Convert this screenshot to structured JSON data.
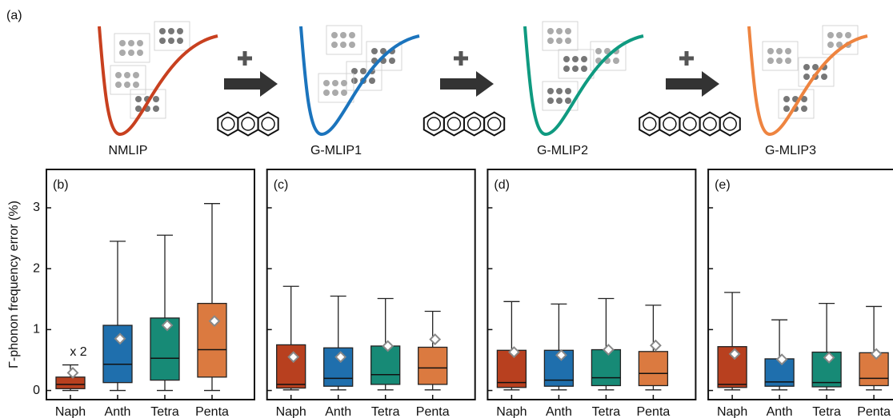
{
  "schematic": {
    "label": "(a)",
    "models": [
      "NMLIP",
      "G-MLIP1",
      "G-MLIP2",
      "G-MLIP3"
    ],
    "colors": [
      "#c8401f",
      "#1b74bd",
      "#0f9a80",
      "#ee8440"
    ]
  },
  "chart_data": [
    {
      "type": "box",
      "panel_label": "(b)",
      "ylabel": "Γ-phonon frequency error (%)",
      "annotation": "x 2",
      "categories": [
        "Naph",
        "Anth",
        "Tetra",
        "Penta"
      ],
      "colors": [
        "#b8401f",
        "#1f6fad",
        "#178a76",
        "#db7a40"
      ],
      "whisker_low": [
        0,
        0,
        0,
        0
      ],
      "q1": [
        0.03,
        0.13,
        0.17,
        0.22
      ],
      "median": [
        0.1,
        0.43,
        0.53,
        0.67
      ],
      "q3": [
        0.22,
        1.07,
        1.19,
        1.43
      ],
      "whisker_high": [
        0.42,
        2.45,
        2.55,
        3.07
      ],
      "mean": [
        0.29,
        0.85,
        1.07,
        1.14
      ],
      "ylim": [
        -0.15,
        3.63
      ],
      "yticks": [
        0,
        1,
        2,
        3
      ],
      "show_ytick_labels": true
    },
    {
      "type": "box",
      "panel_label": "(c)",
      "categories": [
        "Naph",
        "Anth",
        "Tetra",
        "Penta"
      ],
      "colors": [
        "#b8401f",
        "#1f6fad",
        "#178a76",
        "#db7a40"
      ],
      "whisker_low": [
        0.01,
        0.01,
        0.01,
        0.01
      ],
      "q1": [
        0.04,
        0.07,
        0.1,
        0.1
      ],
      "median": [
        0.1,
        0.2,
        0.26,
        0.37
      ],
      "q3": [
        0.75,
        0.7,
        0.73,
        0.71
      ],
      "whisker_high": [
        1.71,
        1.55,
        1.51,
        1.3
      ],
      "mean": [
        0.55,
        0.55,
        0.73,
        0.84
      ],
      "ylim": [
        -0.15,
        3.63
      ],
      "yticks": [
        0,
        1,
        2,
        3
      ],
      "show_ytick_labels": false
    },
    {
      "type": "box",
      "panel_label": "(d)",
      "categories": [
        "Naph",
        "Anth",
        "Tetra",
        "Penta"
      ],
      "colors": [
        "#b8401f",
        "#1f6fad",
        "#178a76",
        "#db7a40"
      ],
      "whisker_low": [
        0.01,
        0.01,
        0.01,
        0.01
      ],
      "q1": [
        0.05,
        0.07,
        0.08,
        0.08
      ],
      "median": [
        0.13,
        0.17,
        0.21,
        0.28
      ],
      "q3": [
        0.66,
        0.66,
        0.67,
        0.64
      ],
      "whisker_high": [
        1.46,
        1.42,
        1.51,
        1.4
      ],
      "mean": [
        0.63,
        0.58,
        0.67,
        0.74
      ],
      "ylim": [
        -0.15,
        3.63
      ],
      "yticks": [
        0,
        1,
        2,
        3
      ],
      "show_ytick_labels": false
    },
    {
      "type": "box",
      "panel_label": "(e)",
      "categories": [
        "Naph",
        "Anth",
        "Tetra",
        "Penta"
      ],
      "colors": [
        "#b8401f",
        "#1f6fad",
        "#178a76",
        "#db7a40"
      ],
      "whisker_low": [
        0.01,
        0.01,
        0.01,
        0.01
      ],
      "q1": [
        0.05,
        0.07,
        0.06,
        0.08
      ],
      "median": [
        0.1,
        0.14,
        0.13,
        0.2
      ],
      "q3": [
        0.72,
        0.52,
        0.63,
        0.62
      ],
      "whisker_high": [
        1.61,
        1.16,
        1.43,
        1.38
      ],
      "mean": [
        0.6,
        0.51,
        0.54,
        0.6
      ],
      "ylim": [
        -0.15,
        3.63
      ],
      "yticks": [
        0,
        1,
        2,
        3
      ],
      "show_ytick_labels": false
    }
  ]
}
